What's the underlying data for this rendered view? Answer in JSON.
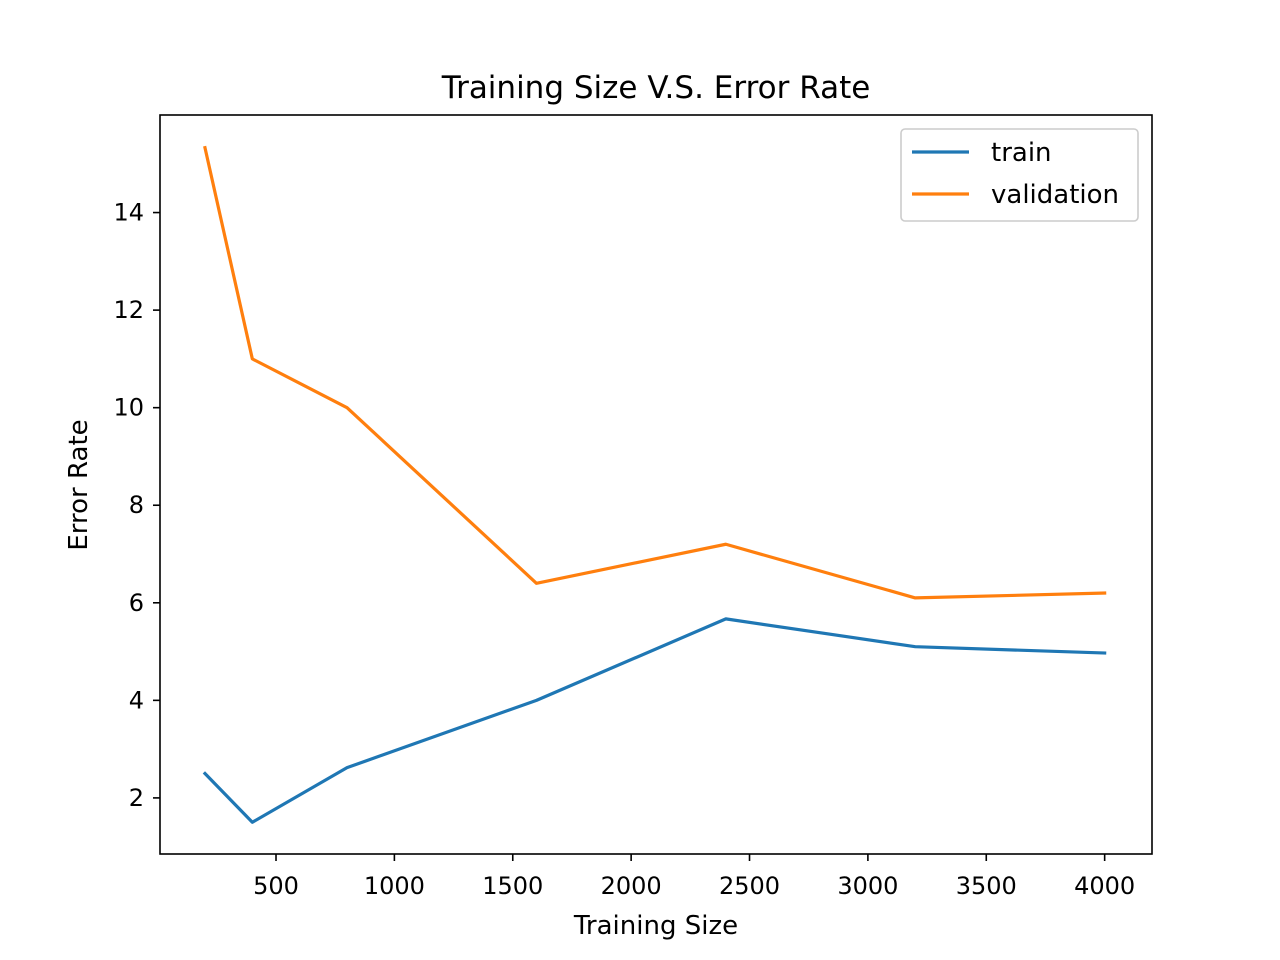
{
  "chart_data": {
    "type": "line",
    "title": "Training Size V.S. Error Rate",
    "xlabel": "Training Size",
    "ylabel": "Error Rate",
    "x": [
      200,
      400,
      800,
      1600,
      2400,
      3200,
      4000
    ],
    "xlim": [
      10,
      4200
    ],
    "ylim": [
      0.85,
      16
    ],
    "xticks": [
      500,
      1000,
      1500,
      2000,
      2500,
      3000,
      3500,
      4000
    ],
    "yticks": [
      2,
      4,
      6,
      8,
      10,
      12,
      14
    ],
    "grid": false,
    "legend_position": "top-right",
    "series": [
      {
        "name": "train",
        "color": "#1f77b4",
        "values": [
          2.5,
          1.5,
          2.62,
          4.0,
          5.67,
          5.1,
          4.97
        ]
      },
      {
        "name": "validation",
        "color": "#ff7f0e",
        "values": [
          15.33,
          11.0,
          10.0,
          6.4,
          7.2,
          6.1,
          6.2
        ]
      }
    ]
  }
}
